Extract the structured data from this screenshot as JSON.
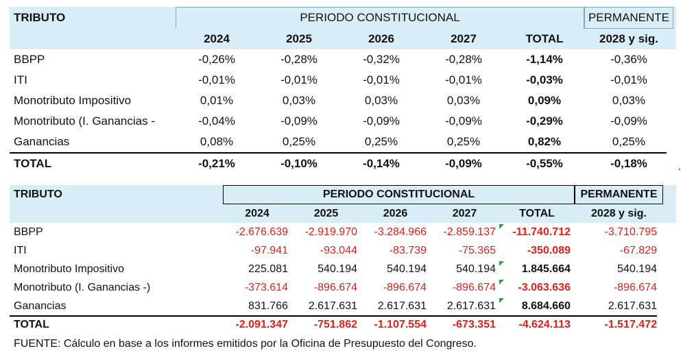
{
  "table1": {
    "headers": {
      "tributo": "TRIBUTO",
      "periodo": "PERIODO CONSTITUCIONAL",
      "permanente": "PERMANENTE",
      "years": [
        "2024",
        "2025",
        "2026",
        "2027",
        "TOTAL",
        "2028 y sig."
      ]
    },
    "rows": [
      {
        "name": "BBPP",
        "values": [
          "-0,26%",
          "-0,28%",
          "-0,32%",
          "-0,28%",
          "-1,14%",
          "-0,36%"
        ]
      },
      {
        "name": "ITI",
        "values": [
          "-0,01%",
          "-0,01%",
          "-0,01%",
          "-0,01%",
          "-0,03%",
          "-0,01%"
        ]
      },
      {
        "name": "Monotributo Impositivo",
        "values": [
          "0,01%",
          "0,03%",
          "0,03%",
          "0,03%",
          "0,09%",
          "0,03%"
        ]
      },
      {
        "name": "Monotributo (I. Ganancias -",
        "values": [
          "-0,04%",
          "-0,09%",
          "-0,09%",
          "-0,09%",
          "-0,29%",
          "-0,09%"
        ]
      },
      {
        "name": "Ganancias",
        "values": [
          "0,08%",
          "0,25%",
          "0,25%",
          "0,25%",
          "0,82%",
          "0,25%"
        ]
      }
    ],
    "total": {
      "name": "TOTAL",
      "values": [
        "-0,21%",
        "-0,10%",
        "-0,14%",
        "-0,09%",
        "-0,55%",
        "-0,18%"
      ]
    }
  },
  "table2": {
    "headers": {
      "tributo": "TRIBUTO",
      "periodo": "PERIODO CONSTITUCIONAL",
      "permanente": "PERMANENTE",
      "years": [
        "2024",
        "2025",
        "2026",
        "2027",
        "TOTAL",
        "2028 y sig."
      ]
    },
    "rows": [
      {
        "name": "BBPP",
        "values": [
          "-2.676.639",
          "-2.919.970",
          "-3.284.966",
          "-2.859.137",
          "-11.740.712",
          "-3.710.795"
        ]
      },
      {
        "name": "ITI",
        "values": [
          "-97.941",
          "-93.044",
          "-83.739",
          "-75.365",
          "-350.089",
          "-67.829"
        ]
      },
      {
        "name": "Monotributo Impositivo",
        "values": [
          "225.081",
          "540.194",
          "540.194",
          "540.194",
          "1.845.664",
          "540.194"
        ]
      },
      {
        "name": "Monotributo (I. Ganancias -)",
        "values": [
          "-373.614",
          "-896.674",
          "-896.674",
          "-896.674",
          "-3.063.636",
          "-896.674"
        ]
      },
      {
        "name": "Ganancias",
        "values": [
          "831.766",
          "2.617.631",
          "2.617.631",
          "2.617.631",
          "8.684.660",
          "2.617.631"
        ]
      }
    ],
    "total": {
      "name": "TOTAL",
      "values": [
        "-2.091.347",
        "-751.862",
        "-1.107.554",
        "-673.351",
        "-4.624.113",
        "-1.517.472"
      ]
    }
  },
  "source": "FUENTE: Cálculo en base a los informes emitidos por la Oficina de Presupuesto del Congreso.",
  "colors": {
    "header_bg": "#d9edf7",
    "negative": "#e0201b",
    "indicator": "#2e9e3a"
  }
}
